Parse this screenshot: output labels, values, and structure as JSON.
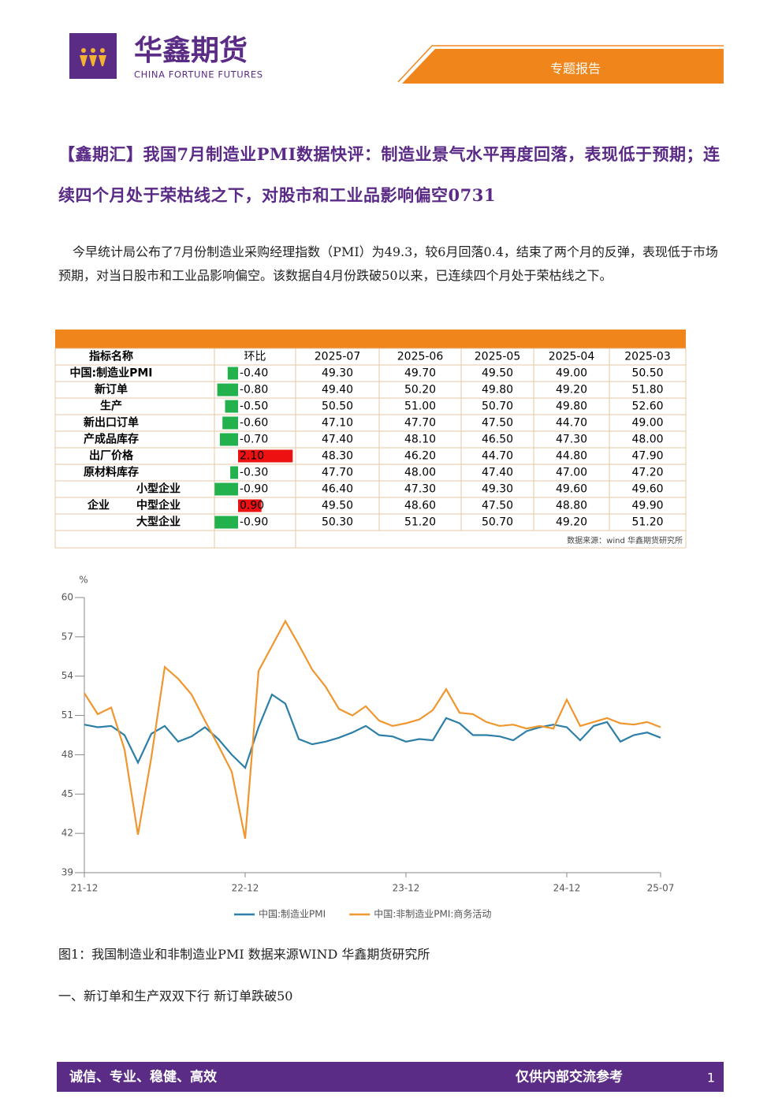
{
  "header": {
    "company": "华鑫期货",
    "company_en": "CHINA FORTUNE FUTURES",
    "report_type": "专题报告"
  },
  "title": "【鑫期汇】我国7月制造业PMI数据快评：制造业景气水平再度回落，表现低于预期；连续四个月处于荣枯线之下，对股市和工业品影响偏空0731",
  "intro": "今早统计局公布了7月份制造业采购经理指数（PMI）为49.3，较6月回落0.4，结束了两个月的反弹，表现低于市场预期，对当日股市和工业品影响偏空。该数据自4月份跌破50以来，已连续四个月处于荣枯线之下。",
  "table": {
    "columns": [
      "指标名称",
      "环比",
      "2025-07",
      "2025-06",
      "2025-05",
      "2025-04",
      "2025-03"
    ],
    "rows": [
      {
        "label": "中国:制造业PMI",
        "change": -0.4,
        "change_label": "-0.40",
        "values": [
          "49.30",
          "49.70",
          "49.50",
          "49.00",
          "50.50"
        ]
      },
      {
        "label": "新订单",
        "change": -0.8,
        "change_label": "-0.80",
        "values": [
          "49.40",
          "50.20",
          "49.80",
          "49.20",
          "51.80"
        ]
      },
      {
        "label": "生产",
        "change": -0.5,
        "change_label": "-0.50",
        "values": [
          "50.50",
          "51.00",
          "50.70",
          "49.80",
          "52.60"
        ]
      },
      {
        "label": "新出口订单",
        "change": -0.6,
        "change_label": "-0.60",
        "values": [
          "47.10",
          "47.70",
          "47.50",
          "44.70",
          "49.00"
        ]
      },
      {
        "label": "产成品库存",
        "change": -0.7,
        "change_label": "-0.70",
        "values": [
          "47.40",
          "48.10",
          "46.50",
          "47.30",
          "48.00"
        ]
      },
      {
        "label": "出厂价格",
        "change": 2.1,
        "change_label": "2.10",
        "values": [
          "48.30",
          "46.20",
          "44.70",
          "44.80",
          "47.90"
        ]
      },
      {
        "label": "原材料库存",
        "change": -0.3,
        "change_label": "-0.30",
        "values": [
          "47.70",
          "48.00",
          "47.40",
          "47.00",
          "47.20"
        ]
      },
      {
        "label": "小型企业",
        "change": -0.9,
        "change_label": "-0.90",
        "values": [
          "46.40",
          "47.30",
          "49.30",
          "49.60",
          "49.60"
        ]
      },
      {
        "label": "中型企业",
        "change": 0.9,
        "change_label": "0.90",
        "values": [
          "49.50",
          "48.60",
          "47.50",
          "48.80",
          "49.90"
        ]
      },
      {
        "label": "大型企业",
        "change": -0.9,
        "change_label": "-0.90",
        "values": [
          "50.30",
          "51.20",
          "50.70",
          "49.20",
          "51.20"
        ]
      }
    ],
    "group_label": "企业",
    "source": "数据来源：wind 华鑫期货研究所"
  },
  "chart_data": {
    "type": "line",
    "ylabel": "%",
    "categories": [
      "21-12",
      null,
      null,
      null,
      null,
      null,
      null,
      null,
      null,
      null,
      null,
      null,
      "22-12",
      null,
      null,
      null,
      null,
      null,
      null,
      null,
      null,
      null,
      null,
      null,
      "23-12",
      null,
      null,
      null,
      null,
      null,
      null,
      null,
      null,
      null,
      null,
      null,
      "24-12",
      null,
      null,
      null,
      null,
      null,
      null,
      "25-07"
    ],
    "series": [
      {
        "name": "中国:制造业PMI",
        "color": "#2e7fa8",
        "values": [
          50.3,
          50.1,
          50.2,
          49.5,
          47.4,
          49.6,
          50.2,
          49.0,
          49.4,
          50.1,
          49.2,
          48.0,
          47.0,
          50.1,
          52.6,
          51.9,
          49.2,
          48.8,
          49.0,
          49.3,
          49.7,
          50.2,
          49.5,
          49.4,
          49.0,
          49.2,
          49.1,
          50.8,
          50.4,
          49.5,
          49.5,
          49.4,
          49.1,
          49.8,
          50.1,
          50.3,
          50.1,
          49.1,
          50.2,
          50.5,
          49.0,
          49.5,
          49.7,
          49.3
        ]
      },
      {
        "name": "中国:非制造业PMI:商务活动",
        "color": "#f0962e",
        "values": [
          52.7,
          51.1,
          51.6,
          48.4,
          41.9,
          47.8,
          54.7,
          53.8,
          52.6,
          50.6,
          48.7,
          46.7,
          41.6,
          54.4,
          56.3,
          58.2,
          56.4,
          54.5,
          53.2,
          51.5,
          51.0,
          51.7,
          50.6,
          50.2,
          50.4,
          50.7,
          51.4,
          53.0,
          51.2,
          51.1,
          50.5,
          50.2,
          50.3,
          50.0,
          50.2,
          50.0,
          52.2,
          50.2,
          50.5,
          50.8,
          50.4,
          50.3,
          50.5,
          50.1
        ]
      }
    ],
    "ylim": [
      39,
      60
    ],
    "yticks": [
      39,
      42,
      45,
      48,
      51,
      54,
      57,
      60
    ],
    "grid": false,
    "legend": "bottom"
  },
  "caption": "图1：我国制造业和非制造业PMI 数据来源WIND 华鑫期货研究所",
  "section": "一、新订单和生产双双下行  新订单跌破50",
  "footer": {
    "slogan": "诚信、专业、稳健、高效",
    "notice": "仅供内部交流参考",
    "page": "1"
  }
}
